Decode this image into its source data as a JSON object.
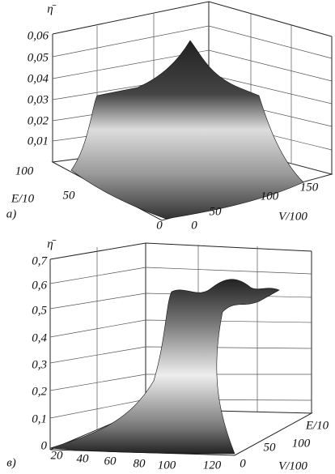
{
  "panels": [
    {
      "label": "a)",
      "z_label": "η̄",
      "z_ticks": [
        "0,06",
        "0,05",
        "0,04",
        "0,03",
        "0,02",
        "0,01"
      ],
      "e_label": "E/10",
      "e_ticks": [
        "100",
        "50",
        "0"
      ],
      "v_label": "V/100",
      "v_ticks": [
        "0",
        "50",
        "100",
        "150"
      ]
    },
    {
      "label": "в)",
      "z_label": "η̄",
      "z_ticks": [
        "0,7",
        "0,6",
        "0,5",
        "0,4",
        "0,3",
        "0,2",
        "0,1",
        "0"
      ],
      "e_label": "E/10",
      "e_ticks": [
        "0",
        "50",
        "100"
      ],
      "v_label": "V/100",
      "v_ticks": [
        "20",
        "40",
        "60",
        "80",
        "100",
        "120"
      ]
    }
  ]
}
